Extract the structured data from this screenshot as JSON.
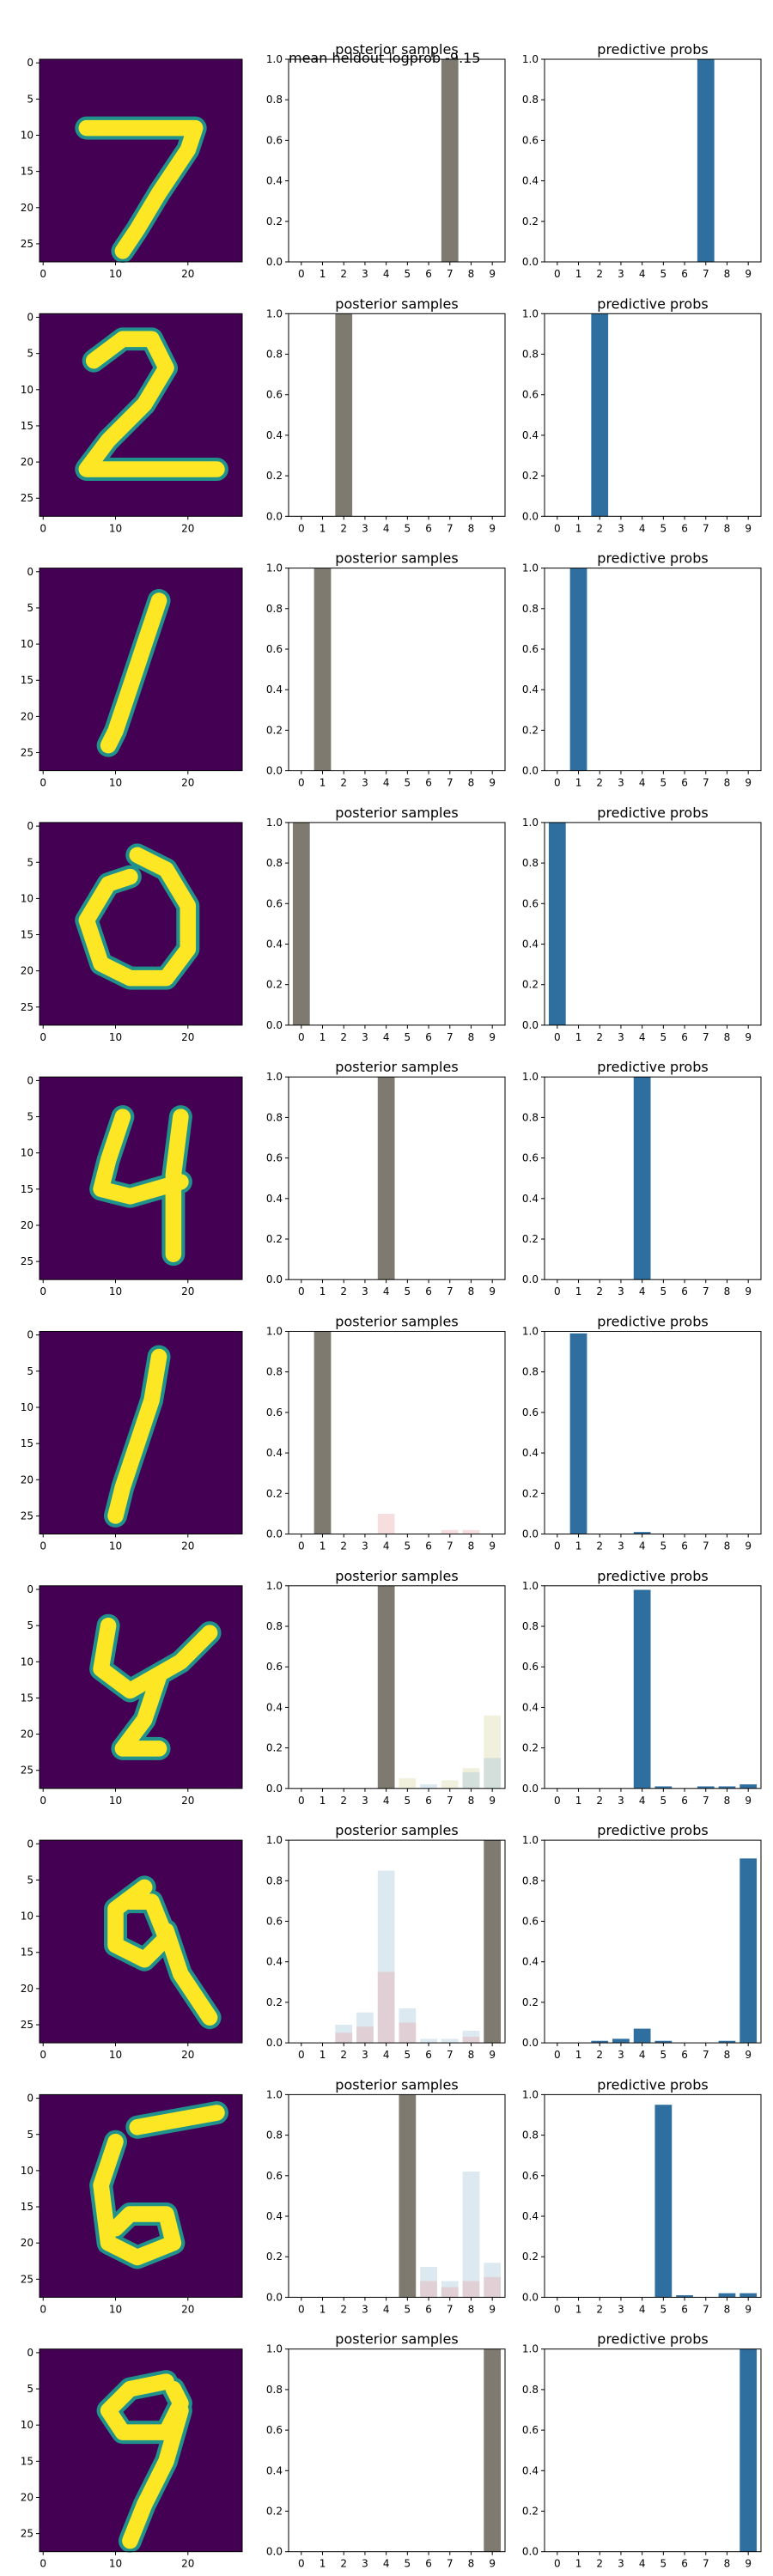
{
  "suptitle": "mean heldout logprob -9.15",
  "posterior_title": "posterior samples",
  "predictive_title": "predictive probs",
  "colors": {
    "posterior_bar": "#7f7a70",
    "predictive_bar": "#2f6f9f",
    "image_bg": "#440154",
    "image_fg": "#fde725",
    "image_mid": "#21918c"
  },
  "image_axis": {
    "xticks": [
      "0",
      "10",
      "20"
    ],
    "yticks": [
      "0",
      "5",
      "10",
      "15",
      "20",
      "25"
    ]
  },
  "bar_axis": {
    "categories": [
      "0",
      "1",
      "2",
      "3",
      "4",
      "5",
      "6",
      "7",
      "8",
      "9"
    ],
    "yticks": [
      "0.0",
      "0.2",
      "0.4",
      "0.6",
      "0.8",
      "1.0"
    ]
  },
  "chart_data": [
    {
      "type": "bar",
      "row": 1,
      "title": "posterior samples",
      "categories": [
        "0",
        "1",
        "2",
        "3",
        "4",
        "5",
        "6",
        "7",
        "8",
        "9"
      ],
      "ylim": [
        0,
        1
      ],
      "values": [
        0,
        0,
        0,
        0,
        0,
        0,
        0,
        1.0,
        0,
        0
      ]
    },
    {
      "type": "bar",
      "row": 1,
      "title": "predictive probs",
      "categories": [
        "0",
        "1",
        "2",
        "3",
        "4",
        "5",
        "6",
        "7",
        "8",
        "9"
      ],
      "ylim": [
        0,
        1
      ],
      "values": [
        0,
        0,
        0,
        0,
        0,
        0,
        0,
        1.0,
        0,
        0
      ]
    },
    {
      "type": "bar",
      "row": 2,
      "title": "posterior samples",
      "categories": [
        "0",
        "1",
        "2",
        "3",
        "4",
        "5",
        "6",
        "7",
        "8",
        "9"
      ],
      "ylim": [
        0,
        1
      ],
      "values": [
        0,
        0,
        1.0,
        0,
        0,
        0,
        0,
        0,
        0,
        0
      ]
    },
    {
      "type": "bar",
      "row": 2,
      "title": "predictive probs",
      "categories": [
        "0",
        "1",
        "2",
        "3",
        "4",
        "5",
        "6",
        "7",
        "8",
        "9"
      ],
      "ylim": [
        0,
        1
      ],
      "values": [
        0,
        0,
        1.0,
        0,
        0,
        0,
        0,
        0,
        0,
        0
      ]
    },
    {
      "type": "bar",
      "row": 3,
      "title": "posterior samples",
      "categories": [
        "0",
        "1",
        "2",
        "3",
        "4",
        "5",
        "6",
        "7",
        "8",
        "9"
      ],
      "ylim": [
        0,
        1
      ],
      "values": [
        0,
        1.0,
        0,
        0,
        0,
        0,
        0,
        0,
        0,
        0
      ]
    },
    {
      "type": "bar",
      "row": 3,
      "title": "predictive probs",
      "categories": [
        "0",
        "1",
        "2",
        "3",
        "4",
        "5",
        "6",
        "7",
        "8",
        "9"
      ],
      "ylim": [
        0,
        1
      ],
      "values": [
        0,
        1.0,
        0,
        0,
        0,
        0,
        0,
        0,
        0,
        0
      ]
    },
    {
      "type": "bar",
      "row": 4,
      "title": "posterior samples",
      "categories": [
        "0",
        "1",
        "2",
        "3",
        "4",
        "5",
        "6",
        "7",
        "8",
        "9"
      ],
      "ylim": [
        0,
        1
      ],
      "values": [
        1.0,
        0,
        0,
        0,
        0,
        0,
        0,
        0,
        0,
        0
      ]
    },
    {
      "type": "bar",
      "row": 4,
      "title": "predictive probs",
      "categories": [
        "0",
        "1",
        "2",
        "3",
        "4",
        "5",
        "6",
        "7",
        "8",
        "9"
      ],
      "ylim": [
        0,
        1
      ],
      "values": [
        1.0,
        0,
        0,
        0,
        0,
        0,
        0,
        0,
        0,
        0
      ]
    },
    {
      "type": "bar",
      "row": 5,
      "title": "posterior samples",
      "categories": [
        "0",
        "1",
        "2",
        "3",
        "4",
        "5",
        "6",
        "7",
        "8",
        "9"
      ],
      "ylim": [
        0,
        1
      ],
      "values": [
        0,
        0,
        0,
        0,
        1.0,
        0,
        0,
        0,
        0,
        0
      ]
    },
    {
      "type": "bar",
      "row": 5,
      "title": "predictive probs",
      "categories": [
        "0",
        "1",
        "2",
        "3",
        "4",
        "5",
        "6",
        "7",
        "8",
        "9"
      ],
      "ylim": [
        0,
        1
      ],
      "values": [
        0,
        0,
        0,
        0,
        1.0,
        0,
        0,
        0,
        0,
        0
      ]
    },
    {
      "type": "bar",
      "row": 6,
      "title": "posterior samples",
      "categories": [
        "0",
        "1",
        "2",
        "3",
        "4",
        "5",
        "6",
        "7",
        "8",
        "9"
      ],
      "ylim": [
        0,
        1
      ],
      "values": [
        0,
        1.0,
        0,
        0,
        0.1,
        0,
        0,
        0.02,
        0.02,
        0
      ],
      "faint_samples": [
        {
          "values": [
            0,
            0,
            0,
            0,
            0.1,
            0,
            0,
            0.02,
            0.02,
            0
          ],
          "color": "#e8a0a0"
        }
      ]
    },
    {
      "type": "bar",
      "row": 6,
      "title": "predictive probs",
      "categories": [
        "0",
        "1",
        "2",
        "3",
        "4",
        "5",
        "6",
        "7",
        "8",
        "9"
      ],
      "ylim": [
        0,
        1
      ],
      "values": [
        0,
        0.99,
        0,
        0,
        0.01,
        0,
        0,
        0,
        0,
        0
      ]
    },
    {
      "type": "bar",
      "row": 7,
      "title": "posterior samples",
      "categories": [
        "0",
        "1",
        "2",
        "3",
        "4",
        "5",
        "6",
        "7",
        "8",
        "9"
      ],
      "ylim": [
        0,
        1
      ],
      "values": [
        0,
        0,
        0,
        0,
        1.0,
        0.05,
        0.02,
        0.04,
        0.1,
        0.36
      ],
      "faint_samples": [
        {
          "values": [
            0,
            0,
            0,
            0,
            0,
            0.05,
            0,
            0.04,
            0.1,
            0.36
          ],
          "color": "#d8d49c"
        },
        {
          "values": [
            0,
            0,
            0,
            0,
            0,
            0,
            0.02,
            0,
            0.08,
            0.15
          ],
          "color": "#9cc0d8"
        }
      ]
    },
    {
      "type": "bar",
      "row": 7,
      "title": "predictive probs",
      "categories": [
        "0",
        "1",
        "2",
        "3",
        "4",
        "5",
        "6",
        "7",
        "8",
        "9"
      ],
      "ylim": [
        0,
        1
      ],
      "values": [
        0,
        0,
        0,
        0,
        0.98,
        0.01,
        0,
        0.01,
        0.01,
        0.02
      ]
    },
    {
      "type": "bar",
      "row": 8,
      "title": "posterior samples",
      "categories": [
        "0",
        "1",
        "2",
        "3",
        "4",
        "5",
        "6",
        "7",
        "8",
        "9"
      ],
      "ylim": [
        0,
        1
      ],
      "values": [
        0,
        0,
        0.09,
        0.15,
        0.85,
        0.17,
        0.02,
        0.02,
        0.06,
        1.0
      ],
      "faint_samples": [
        {
          "values": [
            0,
            0,
            0.09,
            0.15,
            0.85,
            0.17,
            0.02,
            0.02,
            0.06,
            0
          ],
          "color": "#9cc0d8"
        },
        {
          "values": [
            0,
            0,
            0.05,
            0.08,
            0.35,
            0.1,
            0,
            0,
            0.03,
            0
          ],
          "color": "#e8a0a0"
        }
      ]
    },
    {
      "type": "bar",
      "row": 8,
      "title": "predictive probs",
      "categories": [
        "0",
        "1",
        "2",
        "3",
        "4",
        "5",
        "6",
        "7",
        "8",
        "9"
      ],
      "ylim": [
        0,
        1
      ],
      "values": [
        0,
        0,
        0.01,
        0.02,
        0.07,
        0.01,
        0,
        0,
        0.01,
        0.91
      ]
    },
    {
      "type": "bar",
      "row": 9,
      "title": "posterior samples",
      "categories": [
        "0",
        "1",
        "2",
        "3",
        "4",
        "5",
        "6",
        "7",
        "8",
        "9"
      ],
      "ylim": [
        0,
        1
      ],
      "values": [
        0,
        0,
        0,
        0,
        0,
        1.0,
        0.15,
        0.08,
        0.62,
        0.17
      ],
      "faint_samples": [
        {
          "values": [
            0,
            0,
            0,
            0,
            0,
            0,
            0.15,
            0.08,
            0.62,
            0.17
          ],
          "color": "#9cc0d8"
        },
        {
          "values": [
            0,
            0,
            0,
            0,
            0,
            0,
            0.08,
            0.05,
            0.08,
            0.1
          ],
          "color": "#e8a0a0"
        }
      ]
    },
    {
      "type": "bar",
      "row": 9,
      "title": "predictive probs",
      "categories": [
        "0",
        "1",
        "2",
        "3",
        "4",
        "5",
        "6",
        "7",
        "8",
        "9"
      ],
      "ylim": [
        0,
        1
      ],
      "values": [
        0,
        0,
        0,
        0,
        0,
        0.95,
        0.01,
        0,
        0.02,
        0.02
      ]
    },
    {
      "type": "bar",
      "row": 10,
      "title": "posterior samples",
      "categories": [
        "0",
        "1",
        "2",
        "3",
        "4",
        "5",
        "6",
        "7",
        "8",
        "9"
      ],
      "ylim": [
        0,
        1
      ],
      "values": [
        0,
        0,
        0,
        0,
        0,
        0,
        0,
        0,
        0,
        1.0
      ]
    },
    {
      "type": "bar",
      "row": 10,
      "title": "predictive probs",
      "categories": [
        "0",
        "1",
        "2",
        "3",
        "4",
        "5",
        "6",
        "7",
        "8",
        "9"
      ],
      "ylim": [
        0,
        1
      ],
      "values": [
        0,
        0,
        0,
        0,
        0,
        0,
        0,
        0,
        0,
        1.0
      ]
    }
  ]
}
